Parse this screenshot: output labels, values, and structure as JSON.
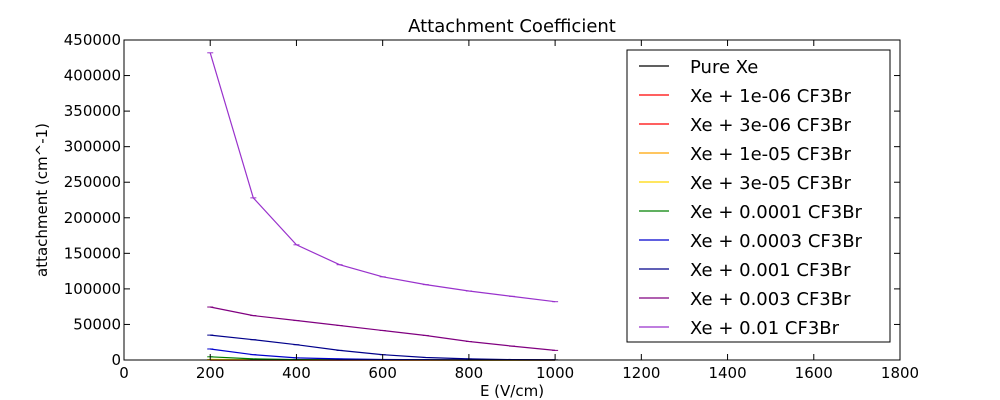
{
  "chart_data": {
    "type": "line",
    "title": "Attachment Coefficient",
    "xlabel": "E (V/cm)",
    "ylabel": "attachment (cm^-1)",
    "xlim": [
      0,
      1800
    ],
    "ylim": [
      0,
      450000
    ],
    "xticks": [
      0,
      200,
      400,
      600,
      800,
      1000,
      1200,
      1400,
      1600,
      1800
    ],
    "yticks": [
      0,
      50000,
      100000,
      150000,
      200000,
      250000,
      300000,
      350000,
      400000,
      450000
    ],
    "xtick_labels": [
      "0",
      "200",
      "400",
      "600",
      "800",
      "1000",
      "1200",
      "1400",
      "1600",
      "1800"
    ],
    "ytick_labels": [
      "0",
      "50000",
      "100000",
      "150000",
      "200000",
      "250000",
      "300000",
      "350000",
      "400000",
      "450000"
    ],
    "grid": false,
    "legend_position": "top-right",
    "x": [
      200,
      300,
      400,
      500,
      600,
      700,
      800,
      900,
      1000
    ],
    "series": [
      {
        "name": "Pure Xe",
        "color": "#000000",
        "values": [
          0,
          0,
          0,
          0,
          0,
          0,
          0,
          0,
          0
        ]
      },
      {
        "name": "Xe + 1e-06 CF3Br",
        "color": "#ff0000",
        "values": [
          0,
          0,
          0,
          0,
          0,
          0,
          0,
          0,
          0
        ]
      },
      {
        "name": "Xe + 3e-06 CF3Br",
        "color": "#ff0000",
        "values": [
          0,
          0,
          0,
          0,
          0,
          0,
          0,
          0,
          0
        ]
      },
      {
        "name": "Xe + 1e-05 CF3Br",
        "color": "#ffa500",
        "values": [
          200,
          100,
          50,
          0,
          0,
          0,
          0,
          0,
          0
        ]
      },
      {
        "name": "Xe + 3e-05 CF3Br",
        "color": "#ffd700",
        "values": [
          800,
          400,
          200,
          100,
          50,
          0,
          0,
          0,
          0
        ]
      },
      {
        "name": "Xe + 0.0001 CF3Br",
        "color": "#008000",
        "values": [
          4500,
          1500,
          600,
          300,
          150,
          80,
          40,
          20,
          10
        ]
      },
      {
        "name": "Xe + 0.0003 CF3Br",
        "color": "#0000cd",
        "values": [
          15500,
          7500,
          3000,
          1500,
          700,
          400,
          200,
          100,
          50
        ]
      },
      {
        "name": "Xe + 0.001 CF3Br",
        "color": "#00008b",
        "values": [
          35000,
          28500,
          21500,
          13500,
          7500,
          3500,
          1500,
          500,
          200
        ]
      },
      {
        "name": "Xe + 0.003 CF3Br",
        "color": "#800080",
        "values": [
          74500,
          62500,
          55500,
          48500,
          41500,
          34500,
          26000,
          19500,
          13500
        ]
      },
      {
        "name": "Xe + 0.01 CF3Br",
        "color": "#9932cc",
        "values": [
          432000,
          228000,
          162000,
          134000,
          117000,
          106000,
          97000,
          89500,
          82000
        ]
      }
    ]
  }
}
